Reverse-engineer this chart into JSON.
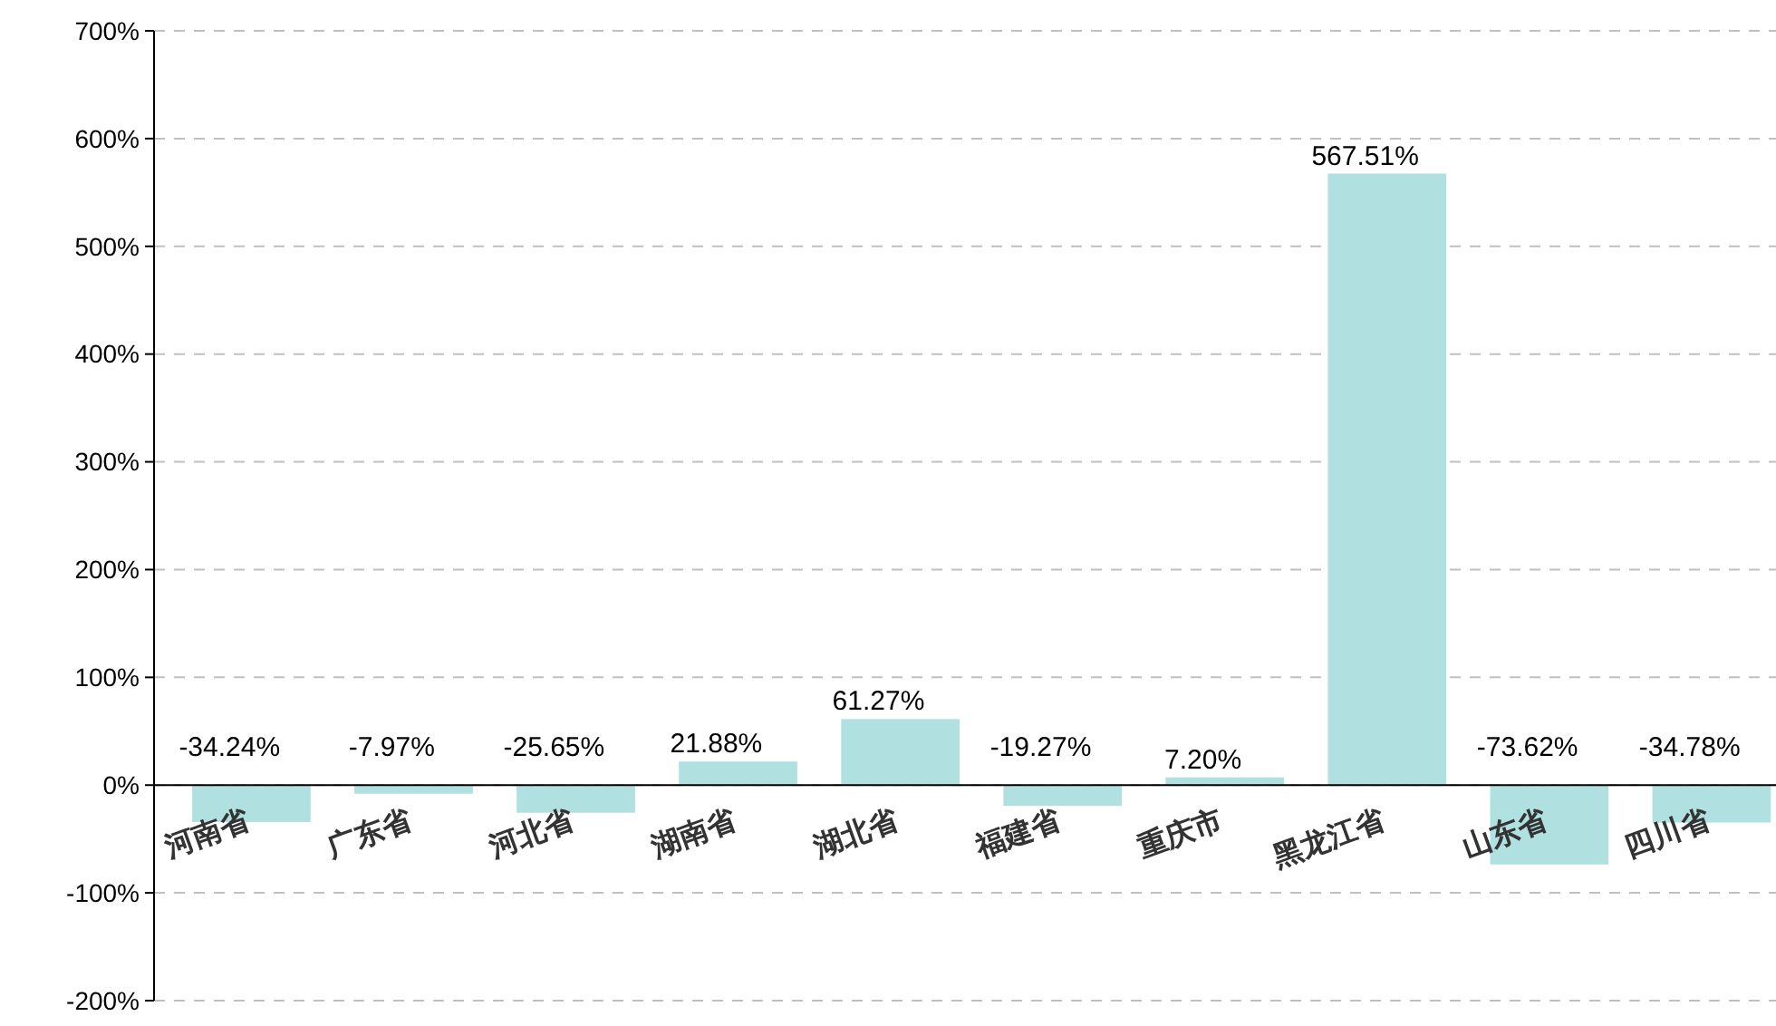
{
  "chart_data": {
    "type": "bar",
    "categories": [
      "河南省",
      "广东省",
      "河北省",
      "湖南省",
      "湖北省",
      "福建省",
      "重庆市",
      "黑龙江省",
      "山东省",
      "四川省"
    ],
    "values": [
      -34.24,
      -7.97,
      -25.65,
      21.88,
      61.27,
      -19.27,
      7.2,
      567.51,
      -73.62,
      -34.78
    ],
    "value_labels": [
      "-34.24%",
      "-7.97%",
      "-25.65%",
      "21.88%",
      "61.27%",
      "-19.27%",
      "7.20%",
      "567.51%",
      "-73.62%",
      "-34.78%"
    ],
    "color": "#b0e0e0",
    "ylim": [
      -200,
      700
    ],
    "yticks": [
      {
        "value": -200,
        "label": "-200%"
      },
      {
        "value": -100,
        "label": "-100%"
      },
      {
        "value": 0,
        "label": "0%"
      },
      {
        "value": 100,
        "label": "100%"
      },
      {
        "value": 200,
        "label": "200%"
      },
      {
        "value": 300,
        "label": "300%"
      },
      {
        "value": 400,
        "label": "400%"
      },
      {
        "value": 500,
        "label": "500%"
      },
      {
        "value": 600,
        "label": "600%"
      },
      {
        "value": 700,
        "label": "700%"
      }
    ],
    "grid": "y"
  }
}
